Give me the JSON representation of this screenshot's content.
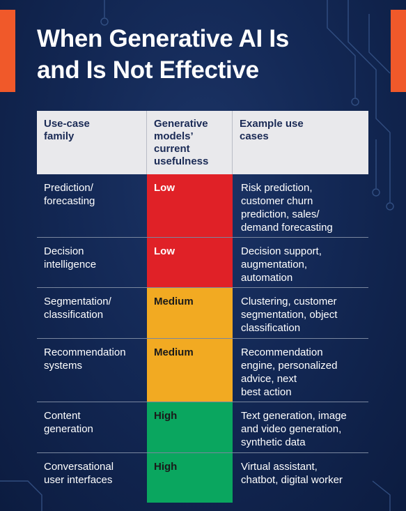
{
  "title_line1": "When Generative AI Is",
  "title_line2": "and Is Not Effective",
  "headers": {
    "family": [
      "Use-case",
      "family"
    ],
    "usefulness": [
      "Generative",
      "models’",
      "current",
      "usefulness"
    ],
    "examples": [
      "Example use",
      "cases"
    ]
  },
  "rows": [
    {
      "family": [
        "Prediction/",
        "forecasting"
      ],
      "rating": "Low",
      "level": "low",
      "examples": [
        "Risk prediction,",
        "customer churn",
        "prediction, sales/",
        "demand forecasting"
      ]
    },
    {
      "family": [
        "Decision",
        "intelligence"
      ],
      "rating": "Low",
      "level": "low",
      "examples": [
        "Decision support,",
        "augmentation,",
        "automation"
      ]
    },
    {
      "family": [
        "Segmentation/",
        "classification"
      ],
      "rating": "Medium",
      "level": "medium",
      "examples": [
        "Clustering, customer",
        "segmentation, object",
        "classification"
      ]
    },
    {
      "family": [
        "Recommendation",
        "systems"
      ],
      "rating": "Medium",
      "level": "medium",
      "examples": [
        "Recommendation",
        "engine, personalized",
        "advice, next",
        "best action"
      ]
    },
    {
      "family": [
        "Content",
        "generation"
      ],
      "rating": "High",
      "level": "high",
      "examples": [
        "Text generation, image",
        "and video generation,",
        "synthetic data"
      ]
    },
    {
      "family": [
        "Conversational",
        "user interfaces"
      ],
      "rating": "High",
      "level": "high",
      "examples": [
        "Virtual assistant,",
        "chatbot, digital worker"
      ]
    }
  ],
  "colors": {
    "low": "#e02127",
    "medium": "#f2aa22",
    "high": "#0aa65f",
    "accent": "#f0592a",
    "header_bg": "#e9e9ec"
  }
}
